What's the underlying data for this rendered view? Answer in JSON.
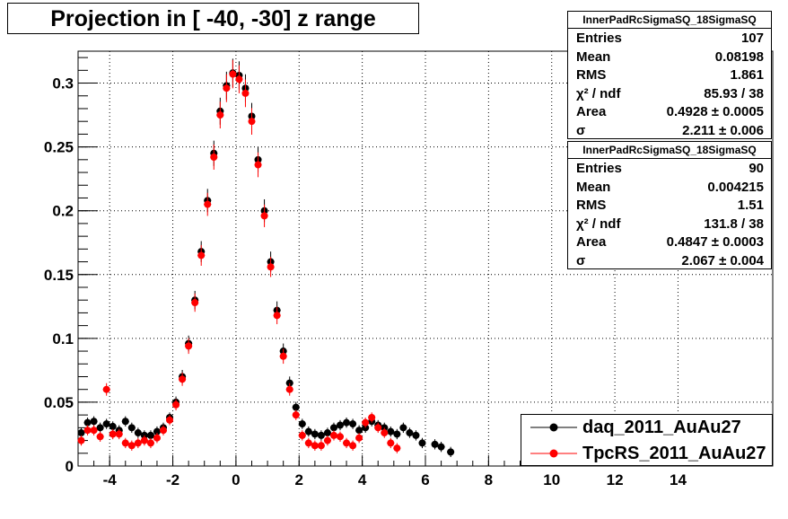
{
  "title": "Projection in [ -40, -30] z range",
  "stats": [
    {
      "name": "InnerPadRcSigmaSQ_18SigmaSQ",
      "rows": [
        {
          "label": "Entries",
          "value": "107"
        },
        {
          "label": "Mean",
          "value": "0.08198"
        },
        {
          "label": "RMS",
          "value": "1.861"
        },
        {
          "label": "χ² / ndf",
          "value": "85.93 / 38"
        },
        {
          "label": "Area",
          "value": "0.4928 ± 0.0005"
        },
        {
          "label": "σ",
          "value": "2.211 ± 0.006"
        }
      ]
    },
    {
      "name": "InnerPadRcSigmaSQ_18SigmaSQ",
      "rows": [
        {
          "label": "Entries",
          "value": "90"
        },
        {
          "label": "Mean",
          "value": "0.004215"
        },
        {
          "label": "RMS",
          "value": "1.51"
        },
        {
          "label": "χ² / ndf",
          "value": "131.8 / 38"
        },
        {
          "label": "Area",
          "value": "0.4847 ± 0.0003"
        },
        {
          "label": "σ",
          "value": "2.067 ± 0.004"
        }
      ]
    }
  ],
  "legend": [
    {
      "label": "daq_2011_AuAu27",
      "color": "#000000"
    },
    {
      "label": "TpcRS_2011_AuAu27",
      "color": "#ff0000"
    }
  ],
  "chart_data": {
    "type": "scatter",
    "title": "Projection in [ -40, -30] z range",
    "xlim": [
      -5,
      17
    ],
    "ylim": [
      0,
      0.325
    ],
    "x_ticks": [
      "-4",
      "-2",
      "0",
      "2",
      "4",
      "6",
      "8",
      "10",
      "12",
      "14"
    ],
    "y_ticks": [
      "0",
      "0.05",
      "0.1",
      "0.15",
      "0.2",
      "0.25",
      "0.3"
    ],
    "grid": true,
    "legend_position": "bottom-right",
    "series": [
      {
        "name": "daq_2011_AuAu27",
        "color": "#000000",
        "x": [
          -4.9,
          -4.7,
          -4.5,
          -4.3,
          -4.1,
          -3.9,
          -3.7,
          -3.5,
          -3.3,
          -3.1,
          -2.9,
          -2.7,
          -2.5,
          -2.3,
          -2.1,
          -1.9,
          -1.7,
          -1.5,
          -1.3,
          -1.1,
          -0.9,
          -0.7,
          -0.5,
          -0.3,
          -0.1,
          0.1,
          0.3,
          0.5,
          0.7,
          0.9,
          1.1,
          1.3,
          1.5,
          1.7,
          1.9,
          2.1,
          2.3,
          2.5,
          2.7,
          2.9,
          3.1,
          3.3,
          3.5,
          3.7,
          3.9,
          4.1,
          4.3,
          4.5,
          4.7,
          4.9,
          5.1,
          5.3,
          5.5,
          5.7,
          5.9,
          6.3,
          6.5,
          6.8
        ],
        "y": [
          0.026,
          0.034,
          0.035,
          0.03,
          0.033,
          0.031,
          0.028,
          0.035,
          0.03,
          0.026,
          0.024,
          0.024,
          0.027,
          0.03,
          0.038,
          0.05,
          0.07,
          0.096,
          0.13,
          0.168,
          0.208,
          0.245,
          0.278,
          0.298,
          0.308,
          0.306,
          0.296,
          0.274,
          0.24,
          0.2,
          0.16,
          0.122,
          0.09,
          0.065,
          0.046,
          0.033,
          0.027,
          0.025,
          0.024,
          0.026,
          0.03,
          0.032,
          0.034,
          0.033,
          0.028,
          0.03,
          0.035,
          0.032,
          0.03,
          0.027,
          0.025,
          0.03,
          0.026,
          0.024,
          0.018,
          0.017,
          0.015,
          0.011
        ]
      },
      {
        "name": "TpcRS_2011_AuAu27",
        "color": "#ff0000",
        "x": [
          -4.9,
          -4.7,
          -4.5,
          -4.3,
          -4.1,
          -3.9,
          -3.7,
          -3.5,
          -3.3,
          -3.1,
          -2.9,
          -2.7,
          -2.5,
          -2.3,
          -2.1,
          -1.9,
          -1.7,
          -1.5,
          -1.3,
          -1.1,
          -0.9,
          -0.7,
          -0.5,
          -0.3,
          -0.1,
          0.1,
          0.3,
          0.5,
          0.7,
          0.9,
          1.1,
          1.3,
          1.5,
          1.7,
          1.9,
          2.1,
          2.3,
          2.5,
          2.7,
          2.9,
          3.1,
          3.3,
          3.5,
          3.7,
          3.9,
          4.1,
          4.3,
          4.5,
          4.7,
          4.9,
          5.1
        ],
        "y": [
          0.02,
          0.028,
          0.028,
          0.023,
          0.06,
          0.025,
          0.025,
          0.018,
          0.016,
          0.018,
          0.02,
          0.018,
          0.022,
          0.028,
          0.036,
          0.048,
          0.068,
          0.094,
          0.128,
          0.165,
          0.205,
          0.242,
          0.275,
          0.296,
          0.307,
          0.303,
          0.292,
          0.27,
          0.236,
          0.196,
          0.156,
          0.118,
          0.086,
          0.06,
          0.04,
          0.024,
          0.018,
          0.016,
          0.016,
          0.02,
          0.024,
          0.023,
          0.018,
          0.016,
          0.022,
          0.034,
          0.038,
          0.03,
          0.026,
          0.018,
          0.014
        ]
      }
    ]
  }
}
